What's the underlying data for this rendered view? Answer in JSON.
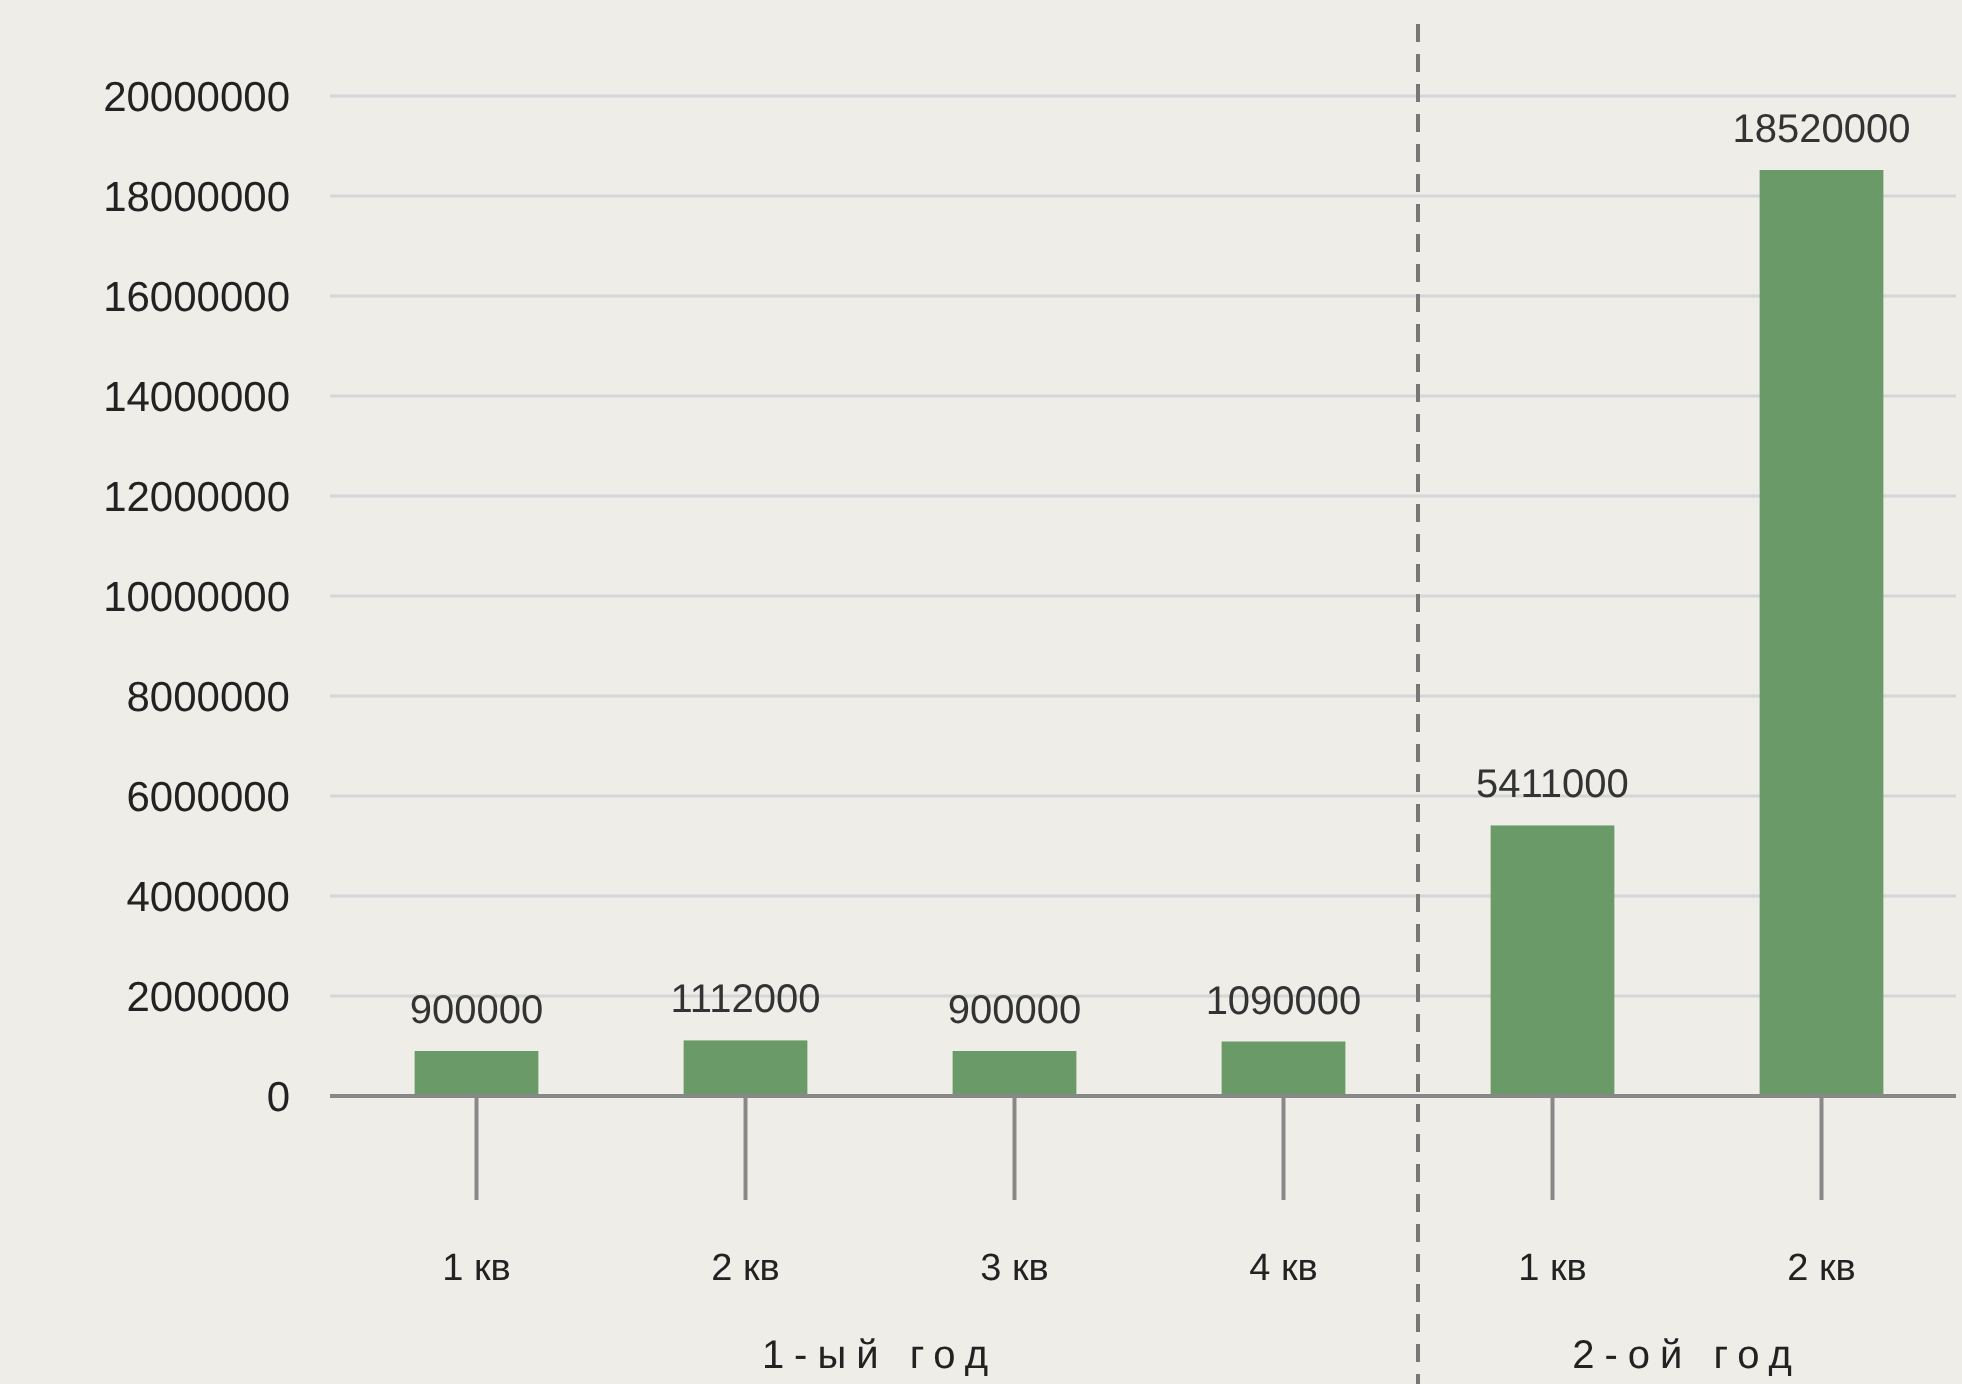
{
  "chart_data": {
    "type": "bar",
    "categories": [
      "1 кв",
      "2 кв",
      "3 кв",
      "4 кв",
      "1 кв",
      "2 кв"
    ],
    "values": [
      900000,
      1112000,
      900000,
      1090000,
      5411000,
      18520000
    ],
    "color": "#6a9a68",
    "ylim": [
      0,
      20000000
    ],
    "yticks": [
      0,
      2000000,
      4000000,
      6000000,
      8000000,
      10000000,
      12000000,
      14000000,
      16000000,
      18000000,
      20000000
    ],
    "grid": "y",
    "data_labels": true,
    "annotations": [
      "1-ый год",
      "2-ой год"
    ]
  }
}
